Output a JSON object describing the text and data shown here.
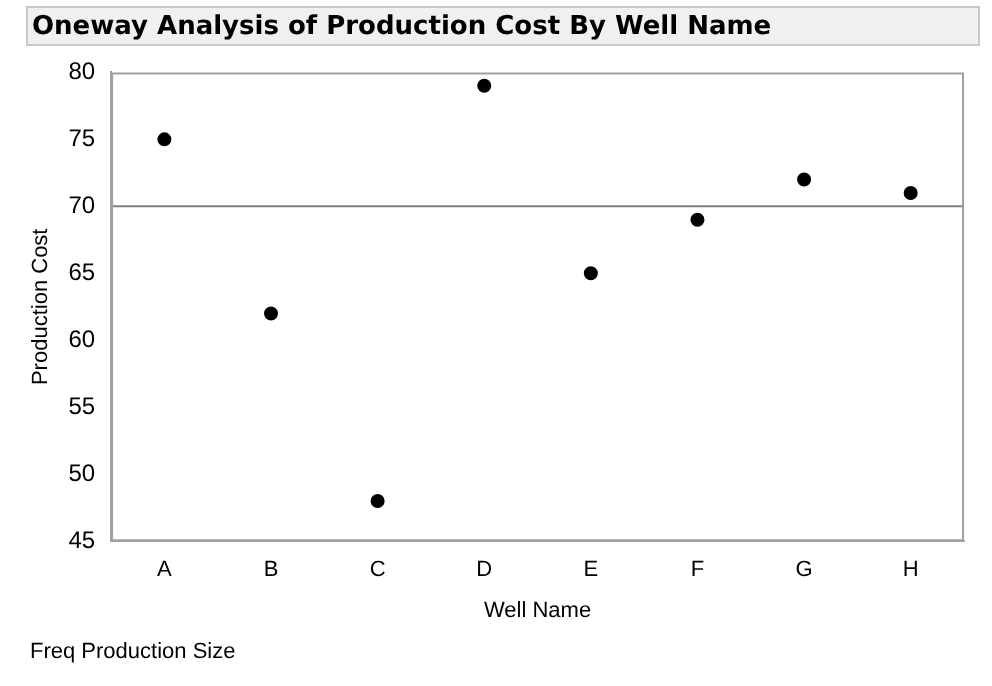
{
  "chart_data": {
    "type": "scatter",
    "title": "Oneway Analysis of Production Cost By Well Name",
    "xlabel": "Well Name",
    "ylabel": "Production Cost",
    "categories": [
      "A",
      "B",
      "C",
      "D",
      "E",
      "F",
      "G",
      "H"
    ],
    "series": [
      {
        "color": "#000000",
        "values": [
          75,
          62,
          48,
          79,
          65,
          69,
          72,
          71
        ]
      }
    ],
    "ylim": [
      45,
      80
    ],
    "yticks": [
      45,
      50,
      55,
      60,
      65,
      70,
      75,
      80
    ],
    "ref_lines": [
      {
        "axis": "y",
        "value": 70,
        "color": "#808080"
      }
    ],
    "marker": "circle",
    "grid": false,
    "legend": false,
    "annotations": [
      "Freq  Production Size"
    ]
  }
}
